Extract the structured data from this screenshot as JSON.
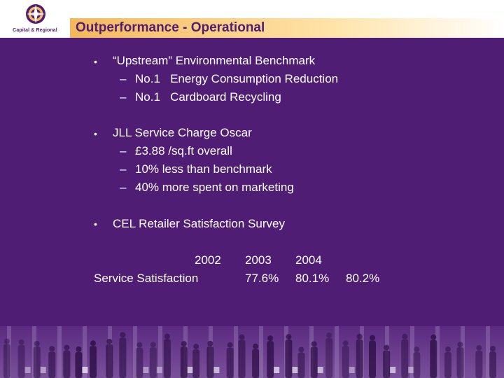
{
  "header": {
    "logo_text": "Capital & Regional",
    "title": "Outperformance - Operational"
  },
  "sections": [
    {
      "bullet": "•",
      "heading": "“Upstream” Environmental Benchmark",
      "items": [
        {
          "dash": "–",
          "text": "No.1   Energy Consumption Reduction"
        },
        {
          "dash": "–",
          "text": "No.1   Cardboard Recycling"
        }
      ]
    },
    {
      "bullet": "•",
      "heading": "JLL Service Charge Oscar",
      "items": [
        {
          "dash": "–",
          "text": "£3.88 /sq.ft overall"
        },
        {
          "dash": "–",
          "text": "10% less than benchmark"
        },
        {
          "dash": "–",
          "text": "40% more spent on marketing"
        }
      ]
    },
    {
      "bullet": "•",
      "heading": "CEL Retailer Satisfaction Survey",
      "items": []
    }
  ],
  "survey_table": {
    "years": [
      "2002",
      "2003",
      "2004"
    ],
    "row_label": "Service Satisfaction",
    "values": [
      "77.6%",
      "80.1%",
      "80.2%"
    ]
  },
  "colors": {
    "background": "#4f1e74",
    "accent": "#f4b75c",
    "title_text": "#4f1e74"
  }
}
